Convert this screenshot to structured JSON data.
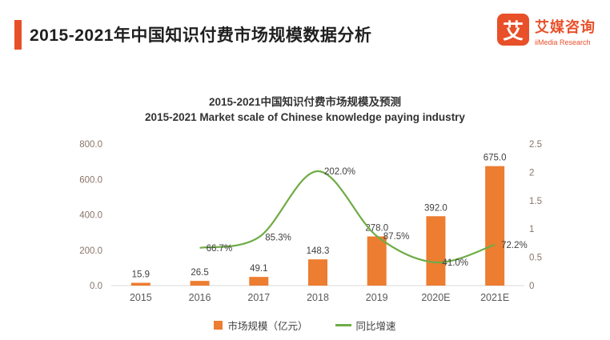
{
  "header": {
    "title": "2015-2021年中国知识付费市场规模数据分析",
    "logo": {
      "icon_glyph": "艾",
      "brand_cn": "艾媒咨询",
      "brand_en": "iiMedia Research"
    }
  },
  "chart_data": {
    "type": "bar+line",
    "title_cn": "2015-2021中国知识付费市场规模及预测",
    "title_en": "2015-2021 Market scale of Chinese knowledge paying industry",
    "categories": [
      "2015",
      "2016",
      "2017",
      "2018",
      "2019",
      "2020E",
      "2021E"
    ],
    "series": [
      {
        "name": "市场规模（亿元）",
        "type": "bar",
        "axis": "left",
        "color": "#ed7d31",
        "values": [
          15.9,
          26.5,
          49.1,
          148.3,
          278.0,
          392.0,
          675.0
        ],
        "labels": [
          "15.9",
          "26.5",
          "49.1",
          "148.3",
          "278.0",
          "392.0",
          "675.0"
        ]
      },
      {
        "name": "同比增速",
        "type": "line",
        "axis": "right",
        "color": "#6fac46",
        "values": [
          null,
          0.667,
          0.853,
          2.02,
          0.875,
          0.41,
          0.722
        ],
        "labels": [
          null,
          "66.7%",
          "85.3%",
          "202.0%",
          "87.5%",
          "41.0%",
          "72.2%"
        ]
      }
    ],
    "left_axis": {
      "min": 0,
      "max": 800,
      "ticks": [
        "0.0",
        "200.0",
        "400.0",
        "600.0",
        "800.0"
      ]
    },
    "right_axis": {
      "min": 0,
      "max": 2.5,
      "ticks": [
        "0",
        "0.5",
        "1",
        "1.5",
        "2",
        "2.5"
      ]
    },
    "legend": [
      {
        "label": "市场规模（亿元）",
        "color": "#ed7d31",
        "marker": "bar"
      },
      {
        "label": "同比增速",
        "color": "#6fac46",
        "marker": "line"
      }
    ],
    "grid": false,
    "legend_position": "bottom"
  },
  "colors": {
    "accent": "#e8502a",
    "bar": "#ed7d31",
    "line": "#6fac46",
    "axis_text": "#8a7468",
    "x_label_text": "#595959",
    "value_label_text": "#404040"
  }
}
